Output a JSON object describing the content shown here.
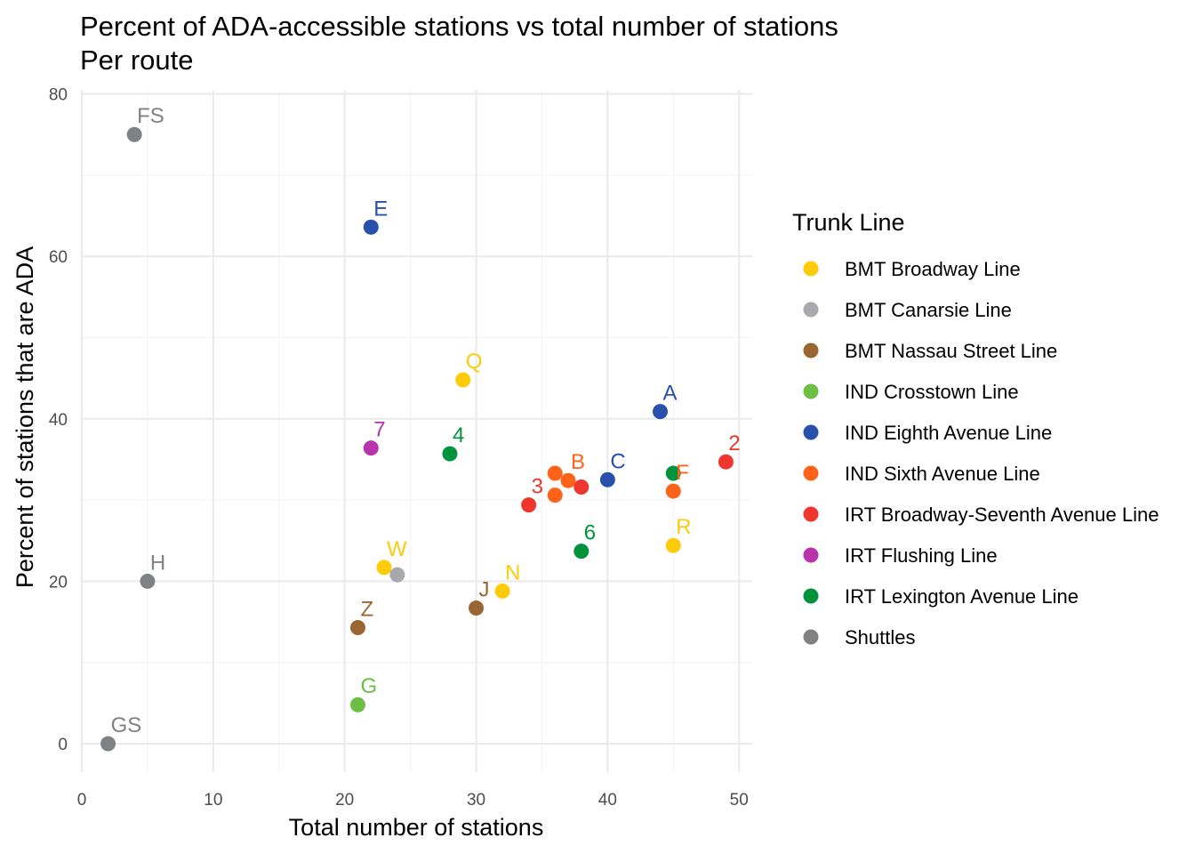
{
  "chart_data": {
    "type": "scatter",
    "title": "Percent of ADA-accessible stations vs total number of stations",
    "subtitle": "Per route",
    "xlabel": "Total number of stations",
    "ylabel": "Percent of stations that are ADA",
    "xlim": [
      0,
      51
    ],
    "ylim": [
      -3.5,
      80.5
    ],
    "x_ticks": [
      0,
      10,
      20,
      30,
      40,
      50
    ],
    "y_ticks": [
      0,
      20,
      40,
      60,
      80
    ],
    "grid": true,
    "legend_position": "right",
    "legend_title": "Trunk Line",
    "groups": [
      {
        "name": "BMT Broadway Line",
        "color": "#fccc0a"
      },
      {
        "name": "BMT Canarsie Line",
        "color": "#a7a9ac"
      },
      {
        "name": "BMT Nassau Street Line",
        "color": "#996633"
      },
      {
        "name": "IND Crosstown Line",
        "color": "#6cbe45"
      },
      {
        "name": "IND Eighth Avenue Line",
        "color": "#2850ad"
      },
      {
        "name": "IND Sixth Avenue Line",
        "color": "#ff6319"
      },
      {
        "name": "IRT Broadway-Seventh Avenue Line",
        "color": "#ee352e"
      },
      {
        "name": "IRT Flushing Line",
        "color": "#b933ad"
      },
      {
        "name": "IRT Lexington Avenue Line",
        "color": "#00933c"
      },
      {
        "name": "Shuttles",
        "color": "#808183"
      }
    ],
    "points": [
      {
        "label": "FS",
        "x": 4,
        "y": 75,
        "group": 9
      },
      {
        "label": "E",
        "x": 22,
        "y": 63.6,
        "group": 4
      },
      {
        "label": "Q",
        "x": 29,
        "y": 44.8,
        "group": 0
      },
      {
        "label": "A",
        "x": 44,
        "y": 40.9,
        "group": 4
      },
      {
        "label": "7",
        "x": 22,
        "y": 36.4,
        "group": 7
      },
      {
        "label": "4",
        "x": 28,
        "y": 35.7,
        "group": 8
      },
      {
        "label": "2",
        "x": 49,
        "y": 34.7,
        "group": 6
      },
      {
        "label": "",
        "x": 36,
        "y": 33.3,
        "group": 5
      },
      {
        "label": "",
        "x": 45,
        "y": 33.3,
        "group": 8
      },
      {
        "label": "C",
        "x": 40,
        "y": 32.5,
        "group": 4
      },
      {
        "label": "B",
        "x": 37,
        "y": 32.4,
        "group": 5
      },
      {
        "label": "",
        "x": 38,
        "y": 31.6,
        "group": 6
      },
      {
        "label": "F",
        "x": 45,
        "y": 31.1,
        "group": 5
      },
      {
        "label": "",
        "x": 36,
        "y": 30.6,
        "group": 5
      },
      {
        "label": "3",
        "x": 34,
        "y": 29.4,
        "group": 6
      },
      {
        "label": "R",
        "x": 45,
        "y": 24.4,
        "group": 0
      },
      {
        "label": "6",
        "x": 38,
        "y": 23.7,
        "group": 8
      },
      {
        "label": "W",
        "x": 23,
        "y": 21.7,
        "group": 0
      },
      {
        "label": "",
        "x": 24,
        "y": 20.8,
        "group": 1
      },
      {
        "label": "H",
        "x": 5,
        "y": 20,
        "group": 9
      },
      {
        "label": "N",
        "x": 32,
        "y": 18.8,
        "group": 0
      },
      {
        "label": "J",
        "x": 30,
        "y": 16.7,
        "group": 2
      },
      {
        "label": "Z",
        "x": 21,
        "y": 14.3,
        "group": 2
      },
      {
        "label": "G",
        "x": 21,
        "y": 4.8,
        "group": 3
      },
      {
        "label": "GS",
        "x": 2,
        "y": 0,
        "group": 9
      }
    ]
  }
}
